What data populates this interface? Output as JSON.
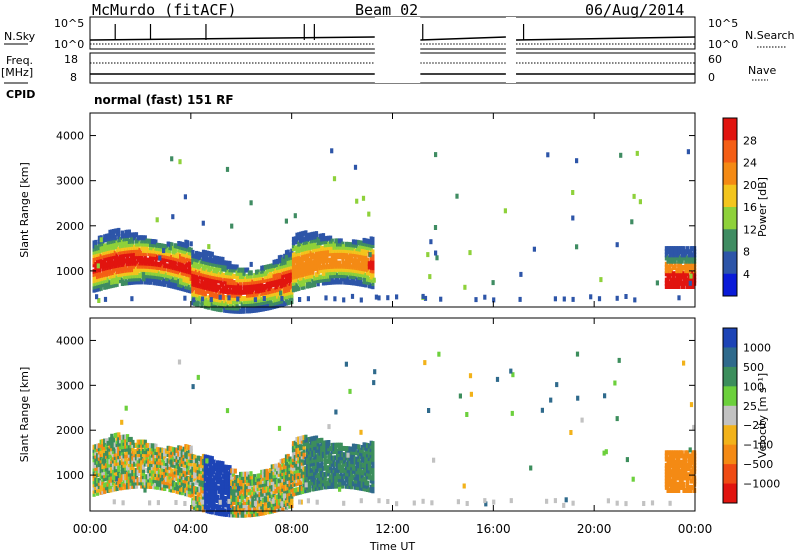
{
  "header": {
    "site": "McMurdo (fitACF)",
    "beam": "Beam 02",
    "date": "06/Aug/2014"
  },
  "aux": {
    "nsky_label": "N.Sky",
    "freq_label": "Freq.",
    "freq_unit": "[MHz]",
    "cpid_label": "CPID",
    "nsearch_label": "N.Search",
    "nave_label": "Nave",
    "left_top": "10^5",
    "left_bottom": "10^0",
    "right_top": "10^5",
    "right_bottom": "10^0",
    "freq_top": "18",
    "freq_bottom": "8",
    "nave_top": "60",
    "nave_bottom": "0",
    "cpid_text": "normal (fast) 151 RF"
  },
  "chart_data": [
    {
      "type": "heatmap",
      "name": "power",
      "ylabel": "Slant Range [km]",
      "ylim": [
        200,
        4500
      ],
      "yticks": [
        "1000",
        "2000",
        "3000",
        "4000"
      ],
      "colorbar_label": "Power [dB]",
      "colorbar_ticks": [
        "4",
        "8",
        "12",
        "16",
        "20",
        "24",
        "28"
      ],
      "colors": [
        "#0a1bd8",
        "#2d55a8",
        "#3f8c62",
        "#8ed13a",
        "#f3c51d",
        "#f48a14",
        "#f45e15",
        "#e1140f"
      ]
    },
    {
      "type": "heatmap",
      "name": "velocity",
      "ylabel": "Slant Range [km]",
      "xlabel": "Time UT",
      "xticks": [
        "00:00",
        "04:00",
        "08:00",
        "12:00",
        "16:00",
        "20:00",
        "00:00"
      ],
      "yticks": [
        "1000",
        "2000",
        "3000",
        "4000"
      ],
      "colorbar_label": "Velocity [m s⁻¹]",
      "colorbar_ticks": [
        "1000",
        "500",
        "100",
        "25",
        "−25",
        "−100",
        "−500",
        "−1000"
      ],
      "colors": [
        "#1d44b6",
        "#2f6a8c",
        "#3c8e5c",
        "#6cd03c",
        "#c2c2c2",
        "#f2b21a",
        "#f48a14",
        "#ef4b14",
        "#e1140f"
      ]
    }
  ]
}
